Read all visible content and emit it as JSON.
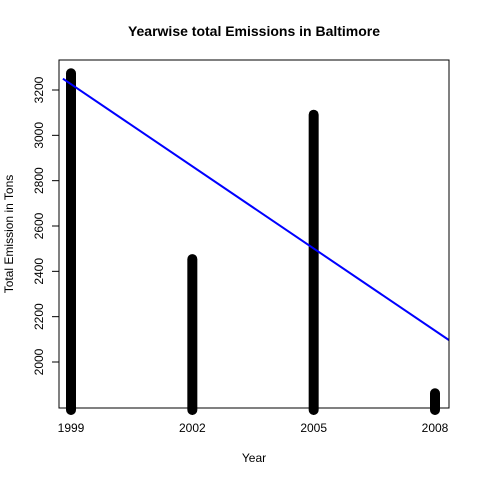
{
  "chart_data": {
    "type": "bar",
    "title": "Yearwise total Emissions in Baltimore",
    "xlabel": "Year",
    "ylabel": "Total Emission in Tons",
    "x": [
      1999,
      2002,
      2005,
      2008
    ],
    "x_ticks": [
      "1999",
      "2002",
      "2005",
      "2008"
    ],
    "values": [
      3274,
      2454,
      3091,
      1862
    ],
    "ylim": [
      1820,
      3300
    ],
    "y_ticks": [
      2000,
      2200,
      2400,
      2600,
      2800,
      3000,
      3200
    ],
    "trendline": {
      "x": [
        1998.8,
        2008.4
      ],
      "y": [
        3250,
        2090
      ]
    },
    "colors": {
      "bars": "#000000",
      "trendline": "#0000ff"
    },
    "grid": false
  }
}
